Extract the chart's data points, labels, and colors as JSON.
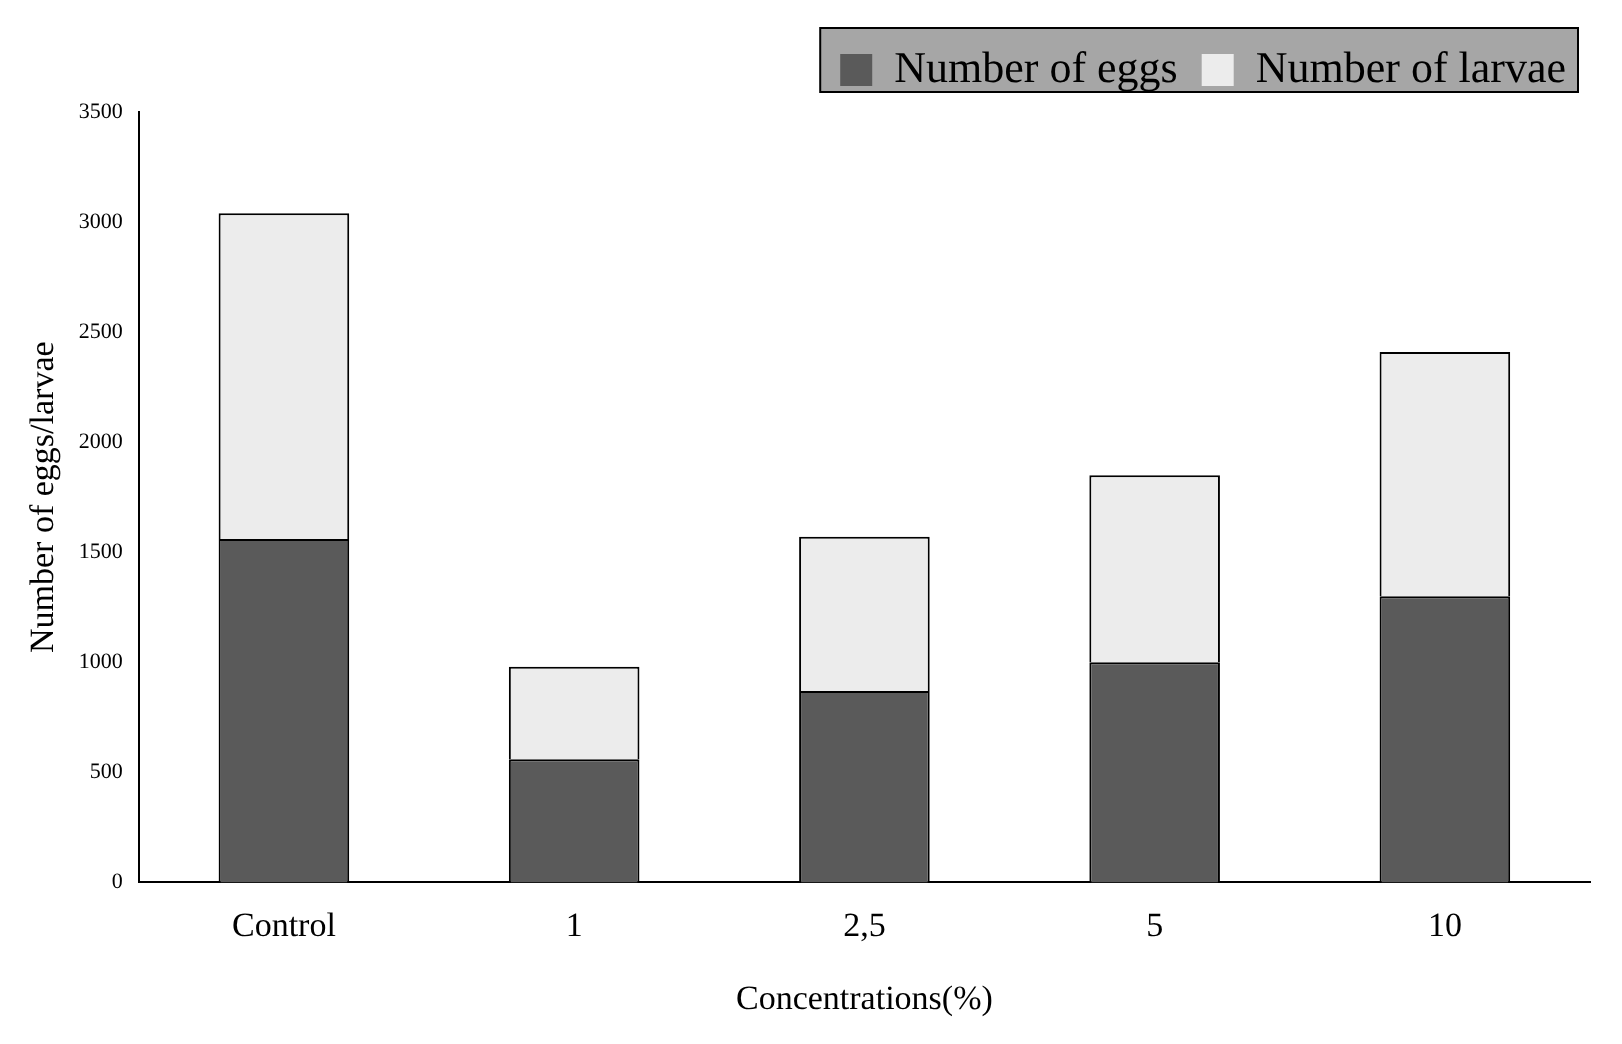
{
  "chart_data": {
    "type": "bar",
    "stacked": true,
    "xlabel": "Concentrations(%)",
    "ylabel": "Number of eggs/larvae",
    "categories": [
      "Control",
      "1",
      "2,5",
      "5",
      "10"
    ],
    "series": [
      {
        "name": "Number of eggs",
        "color": "#5a5a5a",
        "values": [
          1560,
          560,
          870,
          1000,
          1300
        ]
      },
      {
        "name": "Number of larvae",
        "color": "#ececec",
        "values": [
          1480,
          420,
          700,
          850,
          1110
        ]
      }
    ],
    "ylim": [
      0,
      3500
    ],
    "yticks": [
      0,
      500,
      1000,
      1500,
      2000,
      2500,
      3000,
      3500
    ],
    "grid": false,
    "legend": "top right"
  }
}
